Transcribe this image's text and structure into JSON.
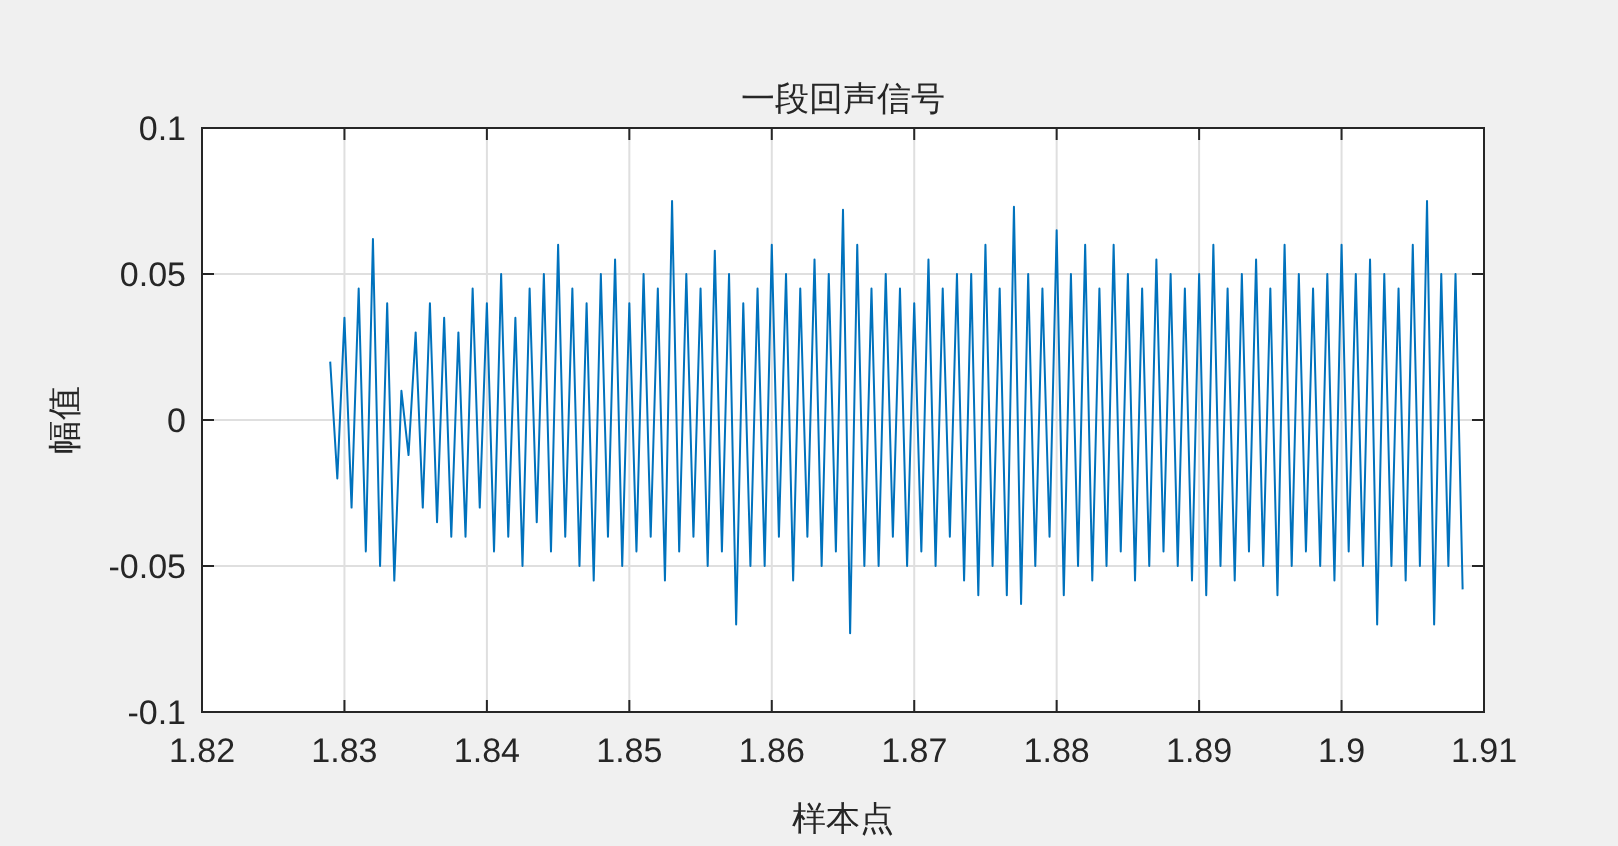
{
  "chart_data": {
    "type": "line",
    "title": "一段回声信号",
    "xlabel": "样本点",
    "ylabel": "幅值",
    "x": [
      1.829,
      1.8295,
      1.83,
      1.8305,
      1.831,
      1.8315,
      1.832,
      1.8325,
      1.833,
      1.8335,
      1.834,
      1.8345,
      1.835,
      1.8355,
      1.836,
      1.8365,
      1.837,
      1.8375,
      1.838,
      1.8385,
      1.839,
      1.8395,
      1.84,
      1.8405,
      1.841,
      1.8415,
      1.842,
      1.8425,
      1.843,
      1.8435,
      1.844,
      1.8445,
      1.845,
      1.8455,
      1.846,
      1.8465,
      1.847,
      1.8475,
      1.848,
      1.8485,
      1.849,
      1.8495,
      1.85,
      1.8505,
      1.851,
      1.8515,
      1.852,
      1.8525,
      1.853,
      1.8535,
      1.854,
      1.8545,
      1.855,
      1.8555,
      1.856,
      1.8565,
      1.857,
      1.8575,
      1.858,
      1.8585,
      1.859,
      1.8595,
      1.86,
      1.8605,
      1.861,
      1.8615,
      1.862,
      1.8625,
      1.863,
      1.8635,
      1.864,
      1.8645,
      1.865,
      1.8655,
      1.866,
      1.8665,
      1.867,
      1.8675,
      1.868,
      1.8685,
      1.869,
      1.8695,
      1.87,
      1.8705,
      1.871,
      1.8715,
      1.872,
      1.8725,
      1.873,
      1.8735,
      1.874,
      1.8745,
      1.875,
      1.8755,
      1.876,
      1.8765,
      1.877,
      1.8775,
      1.878,
      1.8785,
      1.879,
      1.8795,
      1.88,
      1.8805,
      1.881,
      1.8815,
      1.882,
      1.8825,
      1.883,
      1.8835,
      1.884,
      1.8845,
      1.885,
      1.8855,
      1.886,
      1.8865,
      1.887,
      1.8875,
      1.888,
      1.8885,
      1.889,
      1.8895,
      1.89,
      1.8905,
      1.891,
      1.8915,
      1.892,
      1.8925,
      1.893,
      1.8935,
      1.894,
      1.8945,
      1.895,
      1.8955,
      1.896,
      1.8965,
      1.897,
      1.8975,
      1.898,
      1.8985,
      1.899,
      1.8995,
      1.9,
      1.9005,
      1.901,
      1.9015,
      1.902,
      1.9025,
      1.903,
      1.9035,
      1.904,
      1.9045,
      1.905,
      1.9055,
      1.906,
      1.9065,
      1.907,
      1.9075,
      1.908,
      1.9085
    ],
    "series": [
      {
        "color": "#0072bd",
        "values": [
          0.02,
          -0.02,
          0.035,
          -0.03,
          0.045,
          -0.045,
          0.062,
          -0.05,
          0.04,
          -0.055,
          0.01,
          -0.012,
          0.03,
          -0.03,
          0.04,
          -0.035,
          0.035,
          -0.04,
          0.03,
          -0.04,
          0.045,
          -0.03,
          0.04,
          -0.045,
          0.05,
          -0.04,
          0.035,
          -0.05,
          0.045,
          -0.035,
          0.05,
          -0.045,
          0.06,
          -0.04,
          0.045,
          -0.05,
          0.04,
          -0.055,
          0.05,
          -0.04,
          0.055,
          -0.05,
          0.04,
          -0.045,
          0.05,
          -0.04,
          0.045,
          -0.055,
          0.075,
          -0.045,
          0.05,
          -0.04,
          0.045,
          -0.05,
          0.058,
          -0.045,
          0.05,
          -0.07,
          0.04,
          -0.05,
          0.045,
          -0.05,
          0.06,
          -0.04,
          0.05,
          -0.055,
          0.045,
          -0.04,
          0.055,
          -0.05,
          0.05,
          -0.045,
          0.072,
          -0.073,
          0.06,
          -0.05,
          0.045,
          -0.05,
          0.05,
          -0.04,
          0.045,
          -0.05,
          0.04,
          -0.045,
          0.055,
          -0.05,
          0.045,
          -0.04,
          0.05,
          -0.055,
          0.05,
          -0.06,
          0.06,
          -0.05,
          0.045,
          -0.06,
          0.073,
          -0.063,
          0.05,
          -0.05,
          0.045,
          -0.04,
          0.065,
          -0.06,
          0.05,
          -0.05,
          0.06,
          -0.055,
          0.045,
          -0.05,
          0.06,
          -0.045,
          0.05,
          -0.055,
          0.045,
          -0.05,
          0.055,
          -0.045,
          0.05,
          -0.05,
          0.045,
          -0.055,
          0.05,
          -0.06,
          0.06,
          -0.05,
          0.045,
          -0.055,
          0.05,
          -0.045,
          0.055,
          -0.05,
          0.045,
          -0.06,
          0.06,
          -0.05,
          0.05,
          -0.045,
          0.045,
          -0.05,
          0.05,
          -0.055,
          0.06,
          -0.045,
          0.05,
          -0.05,
          0.055,
          -0.07,
          0.05,
          -0.05,
          0.045,
          -0.055,
          0.06,
          -0.05,
          0.075,
          -0.07,
          0.05,
          -0.05,
          0.05,
          -0.058
        ]
      }
    ],
    "xlim": [
      1.82,
      1.91
    ],
    "xticks": [
      1.82,
      1.83,
      1.84,
      1.85,
      1.86,
      1.87,
      1.88,
      1.89,
      1.9,
      1.91
    ],
    "ylim": [
      -0.1,
      0.1
    ],
    "yticks": [
      -0.1,
      -0.05,
      0,
      0.05,
      0.1
    ],
    "grid": true
  }
}
